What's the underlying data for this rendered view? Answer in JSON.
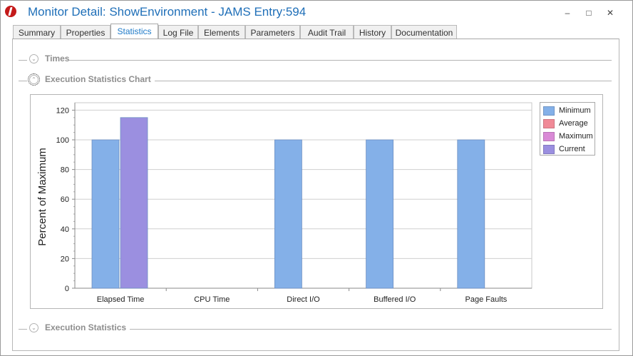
{
  "window": {
    "title": "Monitor Detail: ShowEnvironment - JAMS Entry:594",
    "minimize_glyph": "–",
    "maximize_glyph": "□",
    "close_glyph": "✕"
  },
  "tabs": [
    "Summary",
    "Properties",
    "Statistics",
    "Log File",
    "Elements",
    "Parameters",
    "Audit Trail",
    "History",
    "Documentation"
  ],
  "active_tab": "Statistics",
  "groups": {
    "times": "Times",
    "chart": "Execution Statistics Chart",
    "stats": "Execution Statistics"
  },
  "icons": {
    "app": "jams-logo-icon",
    "collapsed": "chevron-down-circle-icon",
    "expanded": "chevron-up-circle-icon"
  },
  "chart_data": {
    "type": "bar",
    "title": "",
    "xlabel": "",
    "ylabel": "Percent of Maximum",
    "ylim": [
      0,
      125
    ],
    "yticks": [
      0,
      20,
      40,
      60,
      80,
      100,
      120
    ],
    "grid": true,
    "legend_position": "right",
    "categories": [
      "Elapsed Time",
      "CPU Time",
      "Direct I/O",
      "Buffered I/O",
      "Page Faults"
    ],
    "series": [
      {
        "name": "Minimum",
        "color": "#84b0e8",
        "values": [
          100,
          0,
          100,
          100,
          100
        ]
      },
      {
        "name": "Average",
        "color": "#f08a97",
        "values": [
          0,
          0,
          0,
          0,
          0
        ]
      },
      {
        "name": "Maximum",
        "color": "#d98ad6",
        "values": [
          0,
          0,
          0,
          0,
          0
        ]
      },
      {
        "name": "Current",
        "color": "#9b8fe0",
        "values": [
          115,
          0,
          0,
          0,
          0
        ]
      }
    ]
  }
}
